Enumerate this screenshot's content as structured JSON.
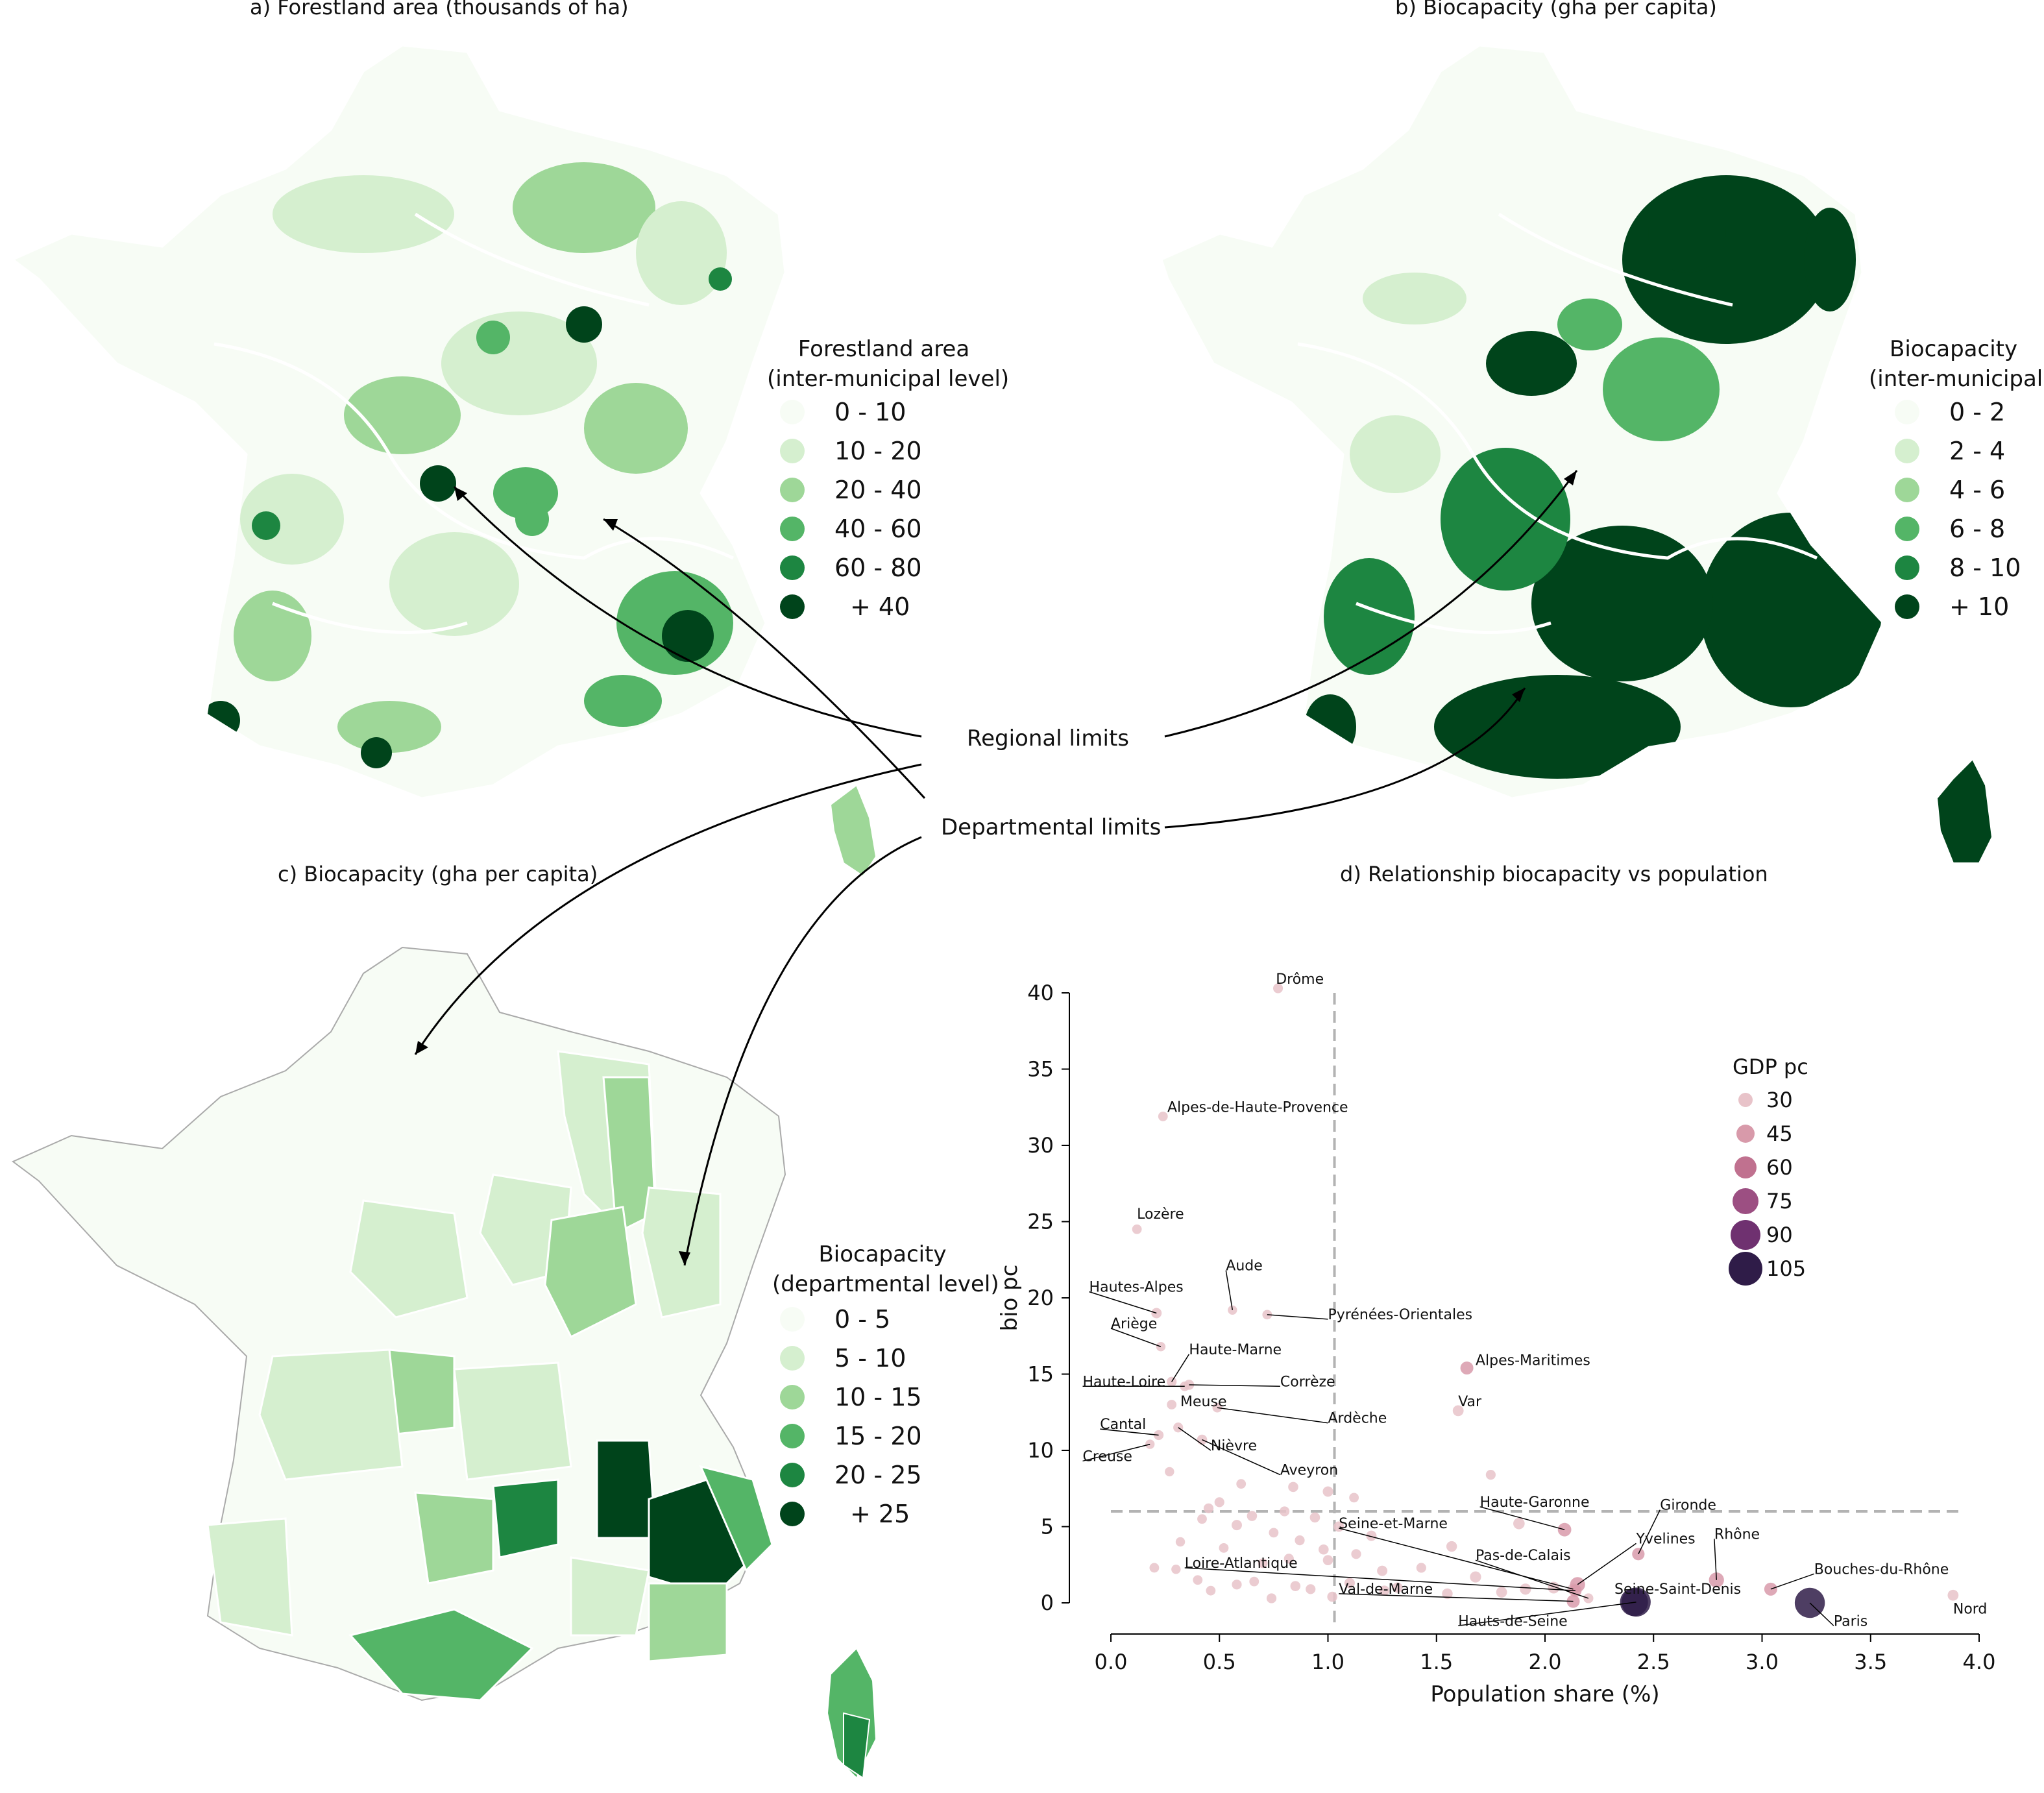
{
  "panels": {
    "a": {
      "title": "a) Forestland area (thousands of ha)",
      "legend_title": [
        "Forestland area",
        "(inter-municipal level)"
      ],
      "legend": [
        "0 - 10",
        "10 - 20",
        "20 - 40",
        "40 - 60",
        "60 - 80",
        "+ 40"
      ]
    },
    "b": {
      "title": "b) Biocapacity (gha per capita)",
      "legend_title": [
        "Biocapacity",
        "(inter-municipal)"
      ],
      "legend": [
        "0 - 2",
        "2 - 4",
        "4 - 6",
        "6 - 8",
        "8 - 10",
        "+ 10"
      ]
    },
    "c": {
      "title": "c) Biocapacity (gha per capita)",
      "legend_title": [
        "Biocapacity",
        "(departmental level)"
      ],
      "legend": [
        "0 - 5",
        "5 - 10",
        "10 - 15",
        "15 - 20",
        "20 - 25",
        "+ 25"
      ]
    },
    "d": {
      "title": "d) Relationship biocapacity vs population"
    }
  },
  "annotations": {
    "regional": "Regional limits",
    "departmental": "Departmental limits"
  },
  "colors": {
    "greens": [
      "#f7fcf5",
      "#d5efcf",
      "#9ed798",
      "#54b567",
      "#1d8641",
      "#00441b"
    ],
    "gdp": [
      "#e8c3c9",
      "#d89aaa",
      "#c0718f",
      "#9c4f82",
      "#6f3170",
      "#2f1c48"
    ],
    "refline": "#b3b3b3"
  },
  "chart_data": {
    "type": "scatter",
    "title": "d) Relationship biocapacity vs population",
    "xlabel": "Population share (%)",
    "ylabel": "bio pc",
    "xlim": [
      0,
      4.0
    ],
    "ylim": [
      0,
      40
    ],
    "xticks": [
      "0.0",
      "0.5",
      "1.0",
      "1.5",
      "2.0",
      "2.5",
      "3.0",
      "3.5",
      "4.0"
    ],
    "yticks": [
      "0",
      "5",
      "10",
      "15",
      "20",
      "25",
      "30",
      "35",
      "40"
    ],
    "reference_lines": {
      "x": 1.03,
      "y": 6.0
    },
    "size_legend": {
      "title": "GDP pc",
      "values": [
        "30",
        "45",
        "60",
        "75",
        "90",
        "105"
      ]
    },
    "points": [
      {
        "label": "Drôme",
        "x": 0.77,
        "y": 40.3,
        "gdp": 28
      },
      {
        "label": "Alpes-de-Haute-Provence",
        "x": 0.24,
        "y": 31.9,
        "gdp": 27
      },
      {
        "label": "Lozère",
        "x": 0.12,
        "y": 24.5,
        "gdp": 27
      },
      {
        "label": "Aude",
        "x": 0.56,
        "y": 19.2,
        "gdp": 26
      },
      {
        "label": "Hautes-Alpes",
        "x": 0.21,
        "y": 19.0,
        "gdp": 30
      },
      {
        "label": "Pyrénées-Orientales",
        "x": 0.72,
        "y": 18.9,
        "gdp": 27
      },
      {
        "label": "Ariège",
        "x": 0.23,
        "y": 16.8,
        "gdp": 26
      },
      {
        "label": "Haute-Marne",
        "x": 0.28,
        "y": 14.5,
        "gdp": 28
      },
      {
        "label": "Haute-Loire",
        "x": 0.34,
        "y": 14.2,
        "gdp": 27
      },
      {
        "label": "Corrèze",
        "x": 0.36,
        "y": 14.3,
        "gdp": 29
      },
      {
        "label": "Alpes-Maritimes",
        "x": 1.64,
        "y": 15.4,
        "gdp": 40
      },
      {
        "label": "Meuse",
        "x": 0.28,
        "y": 13.0,
        "gdp": 27
      },
      {
        "label": "Ardèche",
        "x": 0.49,
        "y": 12.8,
        "gdp": 27
      },
      {
        "label": "Var",
        "x": 1.6,
        "y": 12.6,
        "gdp": 32
      },
      {
        "label": "Cantal",
        "x": 0.22,
        "y": 11.0,
        "gdp": 28
      },
      {
        "label": "Nièvre",
        "x": 0.31,
        "y": 11.5,
        "gdp": 28
      },
      {
        "label": "Creuse",
        "x": 0.18,
        "y": 10.4,
        "gdp": 26
      },
      {
        "label": "Aveyron",
        "x": 0.42,
        "y": 10.7,
        "gdp": 29
      },
      {
        "label": "Haute-Garonne",
        "x": 2.09,
        "y": 4.8,
        "gdp": 42
      },
      {
        "label": "Gironde",
        "x": 2.43,
        "y": 3.2,
        "gdp": 38
      },
      {
        "label": "Seine-et-Marne",
        "x": 2.13,
        "y": 0.9,
        "gdp": 34
      },
      {
        "label": "Yvelines",
        "x": 2.15,
        "y": 1.2,
        "gdp": 48
      },
      {
        "label": "Pas-de-Calais",
        "x": 2.2,
        "y": 0.3,
        "gdp": 28
      },
      {
        "label": "Rhône",
        "x": 2.79,
        "y": 1.5,
        "gdp": 48
      },
      {
        "label": "Loire-Atlantique",
        "x": 2.14,
        "y": 0.8,
        "gdp": 38
      },
      {
        "label": "Bouches-du-Rhône",
        "x": 3.04,
        "y": 0.9,
        "gdp": 40
      },
      {
        "label": "Val-de-Marne",
        "x": 2.13,
        "y": 0.1,
        "gdp": 40
      },
      {
        "label": "Seine-Saint-Denis",
        "x": 2.41,
        "y": 0.05,
        "gdp": 98
      },
      {
        "label": "Hauts-de-Seine",
        "x": 2.42,
        "y": 0.05,
        "gdp": 102
      },
      {
        "label": "Paris",
        "x": 3.22,
        "y": 0.0,
        "gdp": 106
      },
      {
        "label": "Nord",
        "x": 3.88,
        "y": 0.5,
        "gdp": 32
      },
      {
        "label": "",
        "x": 1.75,
        "y": 8.4,
        "gdp": 28
      },
      {
        "label": "",
        "x": 0.84,
        "y": 7.6,
        "gdp": 29
      },
      {
        "label": "",
        "x": 1.0,
        "y": 7.3,
        "gdp": 30
      },
      {
        "label": "",
        "x": 1.12,
        "y": 6.9,
        "gdp": 27
      },
      {
        "label": "",
        "x": 0.45,
        "y": 6.2,
        "gdp": 28
      },
      {
        "label": "",
        "x": 0.6,
        "y": 7.8,
        "gdp": 27
      },
      {
        "label": "",
        "x": 0.27,
        "y": 8.6,
        "gdp": 26
      },
      {
        "label": "",
        "x": 0.5,
        "y": 6.6,
        "gdp": 28
      },
      {
        "label": "",
        "x": 0.65,
        "y": 5.7,
        "gdp": 29
      },
      {
        "label": "",
        "x": 0.58,
        "y": 5.1,
        "gdp": 30
      },
      {
        "label": "",
        "x": 0.42,
        "y": 5.5,
        "gdp": 27
      },
      {
        "label": "",
        "x": 0.8,
        "y": 6.0,
        "gdp": 28
      },
      {
        "label": "",
        "x": 0.94,
        "y": 5.6,
        "gdp": 29
      },
      {
        "label": "",
        "x": 1.05,
        "y": 5.0,
        "gdp": 30
      },
      {
        "label": "",
        "x": 0.75,
        "y": 4.6,
        "gdp": 27
      },
      {
        "label": "",
        "x": 0.87,
        "y": 4.1,
        "gdp": 28
      },
      {
        "label": "",
        "x": 1.2,
        "y": 4.4,
        "gdp": 30
      },
      {
        "label": "",
        "x": 1.88,
        "y": 5.2,
        "gdp": 34
      },
      {
        "label": "",
        "x": 0.32,
        "y": 4.0,
        "gdp": 26
      },
      {
        "label": "",
        "x": 0.52,
        "y": 3.6,
        "gdp": 27
      },
      {
        "label": "",
        "x": 0.98,
        "y": 3.5,
        "gdp": 29
      },
      {
        "label": "",
        "x": 1.13,
        "y": 3.2,
        "gdp": 28
      },
      {
        "label": "",
        "x": 1.57,
        "y": 3.7,
        "gdp": 31
      },
      {
        "label": "",
        "x": 0.7,
        "y": 2.6,
        "gdp": 27
      },
      {
        "label": "",
        "x": 0.82,
        "y": 2.9,
        "gdp": 28
      },
      {
        "label": "",
        "x": 1.0,
        "y": 2.8,
        "gdp": 29
      },
      {
        "label": "",
        "x": 0.2,
        "y": 2.3,
        "gdp": 27
      },
      {
        "label": "",
        "x": 0.3,
        "y": 2.2,
        "gdp": 26
      },
      {
        "label": "",
        "x": 1.25,
        "y": 2.1,
        "gdp": 30
      },
      {
        "label": "",
        "x": 1.43,
        "y": 2.3,
        "gdp": 28
      },
      {
        "label": "",
        "x": 1.68,
        "y": 1.7,
        "gdp": 33
      },
      {
        "label": "",
        "x": 0.4,
        "y": 1.5,
        "gdp": 27
      },
      {
        "label": "",
        "x": 0.58,
        "y": 1.2,
        "gdp": 28
      },
      {
        "label": "",
        "x": 0.85,
        "y": 1.1,
        "gdp": 29
      },
      {
        "label": "",
        "x": 1.32,
        "y": 1.0,
        "gdp": 30
      },
      {
        "label": "",
        "x": 1.91,
        "y": 0.9,
        "gdp": 33
      },
      {
        "label": "",
        "x": 2.04,
        "y": 1.0,
        "gdp": 35
      },
      {
        "label": "",
        "x": 0.46,
        "y": 0.8,
        "gdp": 27
      },
      {
        "label": "",
        "x": 0.74,
        "y": 0.3,
        "gdp": 28
      },
      {
        "label": "",
        "x": 1.02,
        "y": 0.4,
        "gdp": 29
      },
      {
        "label": "",
        "x": 1.55,
        "y": 0.6,
        "gdp": 31
      },
      {
        "label": "",
        "x": 1.8,
        "y": 0.7,
        "gdp": 32
      },
      {
        "label": "",
        "x": 0.66,
        "y": 1.4,
        "gdp": 27
      },
      {
        "label": "",
        "x": 0.92,
        "y": 0.9,
        "gdp": 28
      },
      {
        "label": "",
        "x": 1.1,
        "y": 1.3,
        "gdp": 30
      },
      {
        "label": "",
        "x": 1.26,
        "y": 0.8,
        "gdp": 29
      }
    ]
  }
}
